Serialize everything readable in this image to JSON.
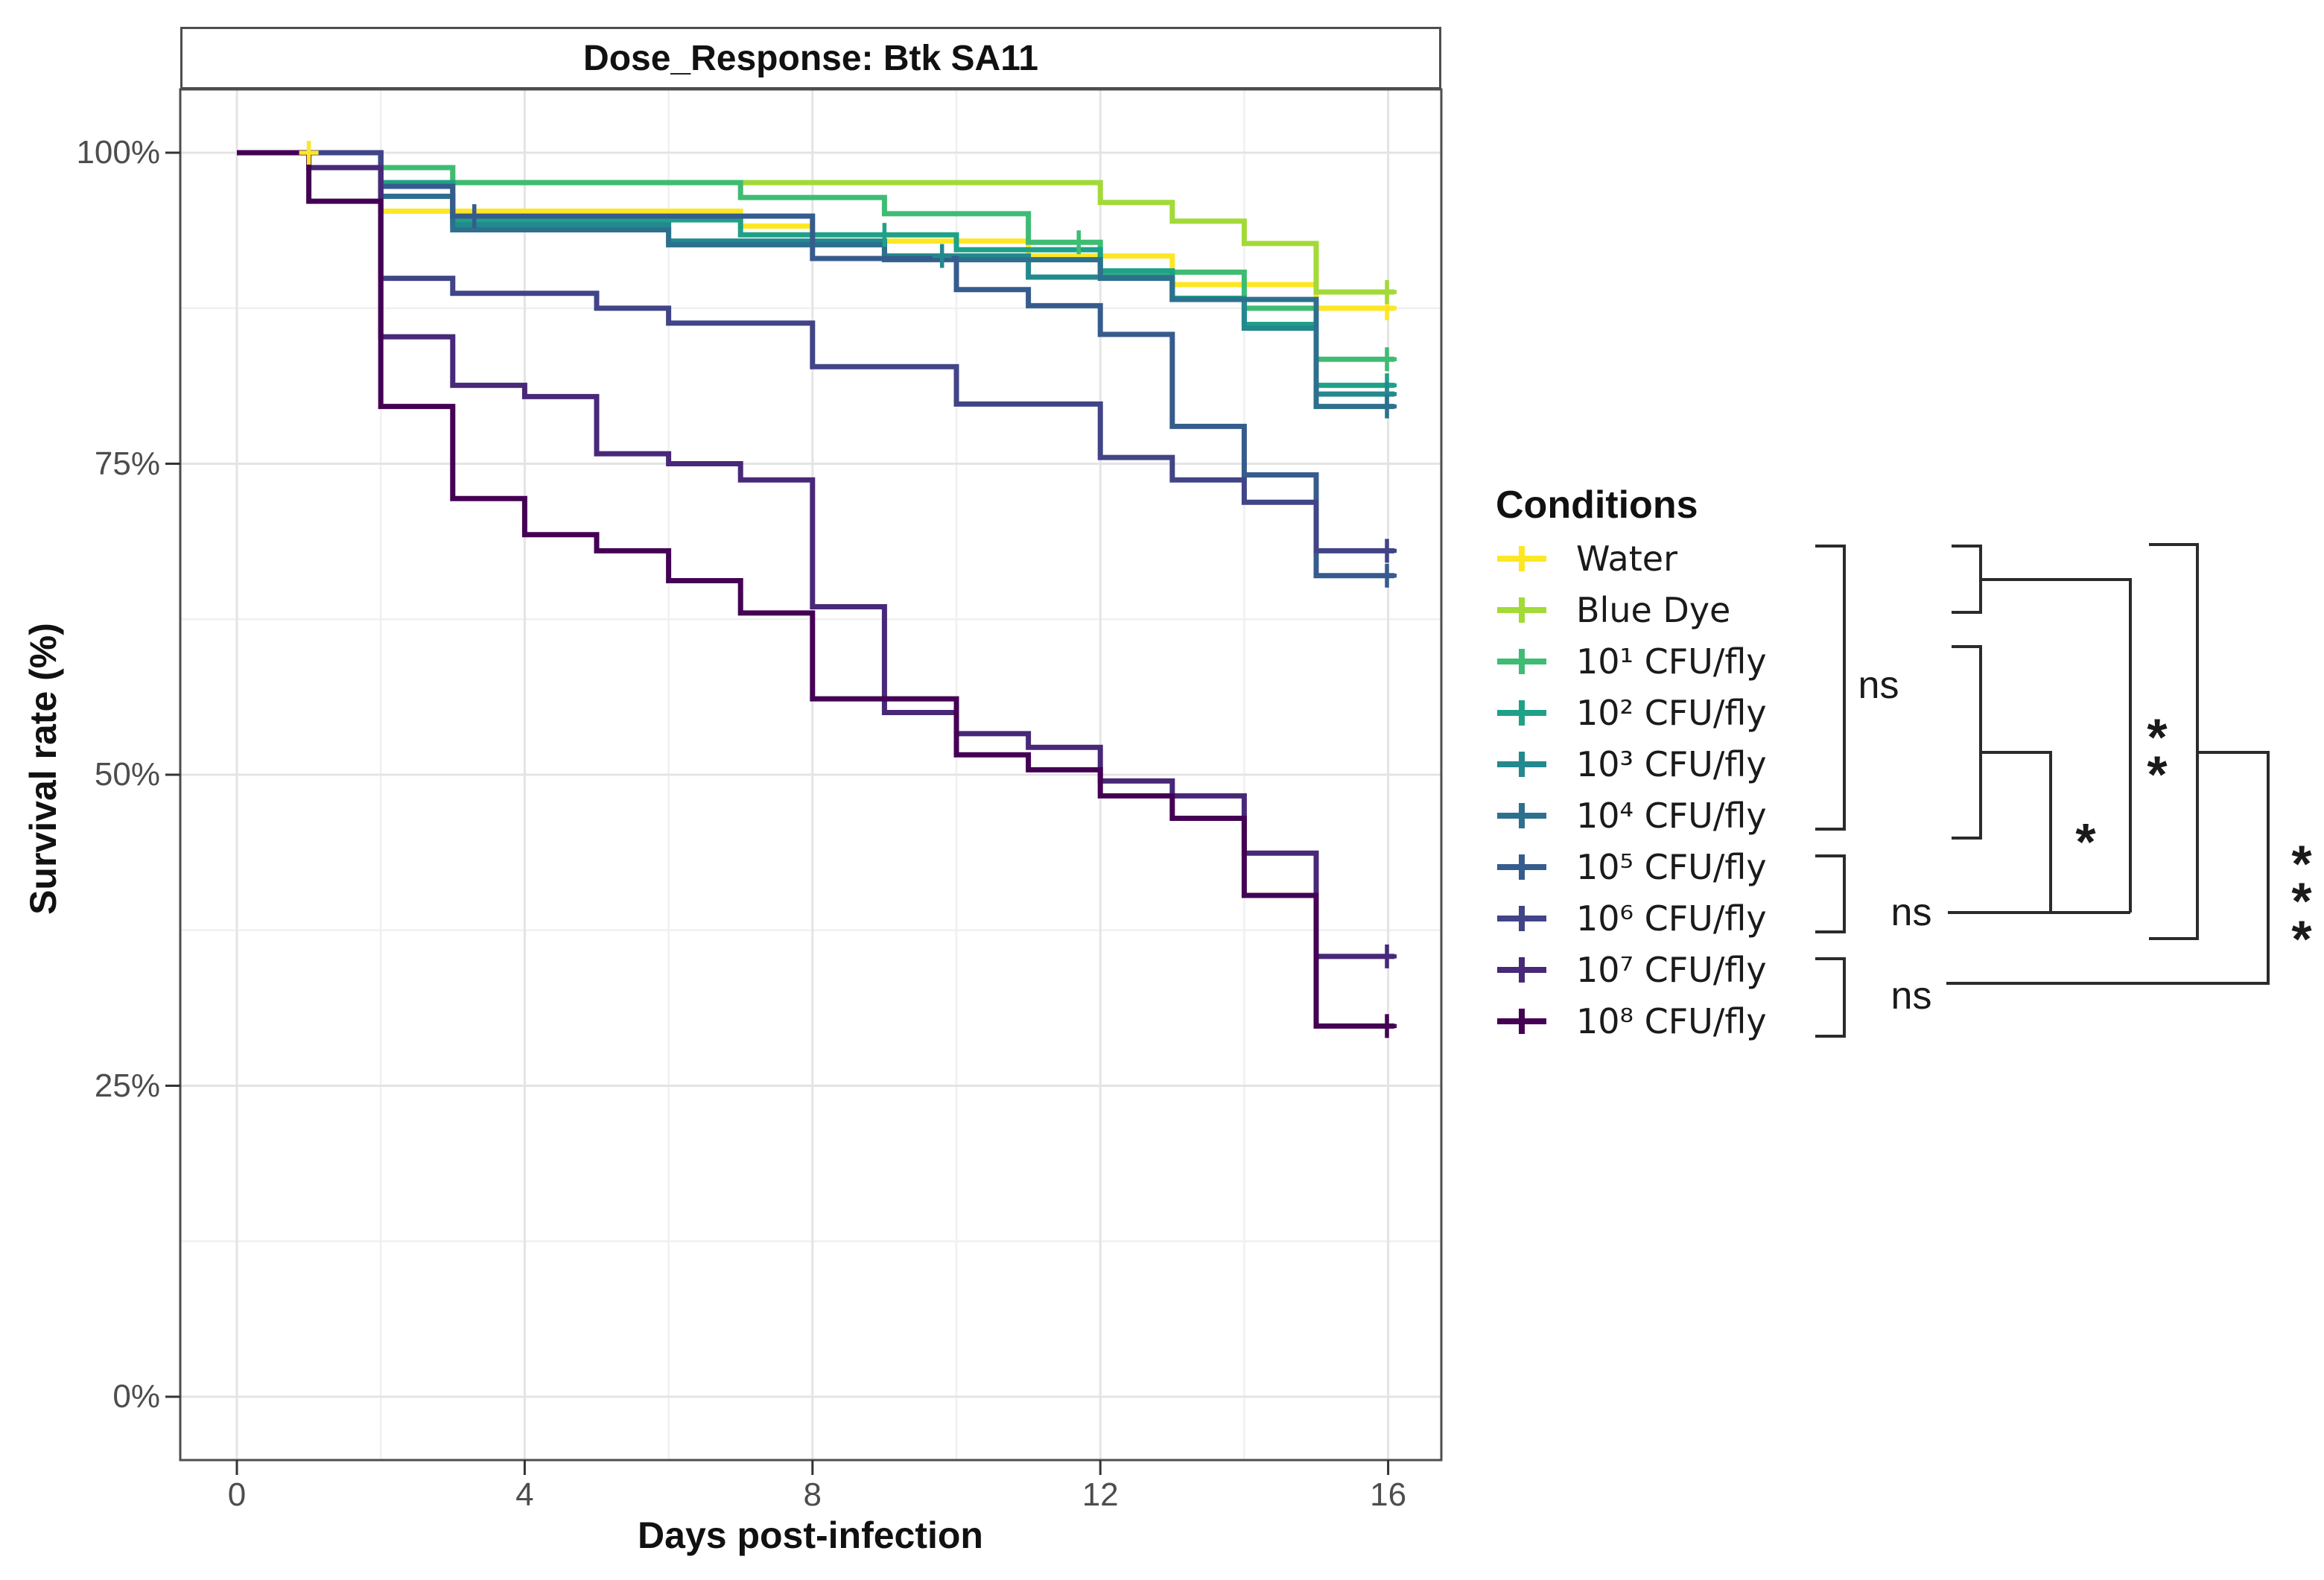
{
  "chart": {
    "title": "Dose_Response: Btk SA11",
    "x_label": "Days post-infection",
    "y_label": "Survival rate (%)"
  },
  "legend": {
    "title": "Conditions"
  },
  "chart_data": {
    "type": "line",
    "subtype": "kaplan-meier-step-survival",
    "title": "Dose_Response: Btk SA11",
    "xlabel": "Days post-infection",
    "ylabel": "Survival rate (%)",
    "xlim": [
      0,
      16.8
    ],
    "ylim": [
      0,
      100
    ],
    "x_ticks": [
      0,
      4,
      8,
      12,
      16
    ],
    "x_tick_labels": [
      "0",
      "4",
      "8",
      "12",
      "16"
    ],
    "x_minor_ticks": [
      2,
      6,
      10,
      14
    ],
    "y_ticks": [
      100,
      75,
      50,
      25,
      0
    ],
    "y_tick_labels": [
      "100%",
      "75%",
      "50%",
      "25%",
      "0%"
    ],
    "y_minor_ticks": [
      87.5,
      62.5,
      37.5,
      12.5
    ],
    "grid": true,
    "legend_position": "right",
    "series": [
      {
        "name": "Water",
        "color": "#FDE725",
        "steps": [
          [
            0,
            100
          ],
          [
            2,
            95.3
          ],
          [
            7,
            94.1
          ],
          [
            8,
            92.9
          ],
          [
            11,
            91.7
          ],
          [
            13,
            89.4
          ],
          [
            15,
            87.5
          ]
        ],
        "censors": [
          [
            1,
            100
          ],
          [
            16,
            87.5
          ]
        ]
      },
      {
        "name": "Blue Dye",
        "color": "#A2DA37",
        "steps": [
          [
            0,
            100
          ],
          [
            2,
            98.8
          ],
          [
            3,
            97.6
          ],
          [
            12,
            96.0
          ],
          [
            13,
            94.5
          ],
          [
            14,
            92.7
          ],
          [
            15,
            88.8
          ]
        ],
        "censors": [
          [
            16,
            88.8
          ]
        ]
      },
      {
        "name": "10¹ CFU/fly",
        "color": "#3FBC73",
        "steps": [
          [
            0,
            100
          ],
          [
            2,
            98.8
          ],
          [
            3,
            97.6
          ],
          [
            7,
            96.4
          ],
          [
            9,
            95.1
          ],
          [
            11,
            92.8
          ],
          [
            12,
            90.4
          ],
          [
            14,
            87.5
          ],
          [
            15,
            83.4
          ]
        ],
        "censors": [
          [
            11.7,
            92.8
          ],
          [
            16,
            83.4
          ]
        ]
      },
      {
        "name": "10² CFU/fly",
        "color": "#1FA188",
        "steps": [
          [
            0,
            100
          ],
          [
            2,
            97.6
          ],
          [
            3,
            94.6
          ],
          [
            7,
            93.4
          ],
          [
            10,
            92.2
          ],
          [
            12,
            90.5
          ],
          [
            13,
            88.3
          ],
          [
            14,
            86.2
          ],
          [
            15,
            81.3
          ]
        ],
        "censors": [
          [
            9,
            93.4
          ],
          [
            16,
            81.3
          ]
        ]
      },
      {
        "name": "10³ CFU/fly",
        "color": "#23898E",
        "steps": [
          [
            0,
            100
          ],
          [
            2,
            96.5
          ],
          [
            3,
            94.2
          ],
          [
            6,
            92.9
          ],
          [
            9,
            91.7
          ],
          [
            11,
            90.0
          ],
          [
            13,
            88.2
          ],
          [
            14,
            85.9
          ],
          [
            15,
            80.6
          ]
        ],
        "censors": [
          [
            9.8,
            91.7
          ],
          [
            16,
            80.6
          ]
        ]
      },
      {
        "name": "10⁴ CFU/fly",
        "color": "#2D708E",
        "steps": [
          [
            0,
            100
          ],
          [
            2,
            96.5
          ],
          [
            3,
            93.8
          ],
          [
            6,
            92.6
          ],
          [
            9,
            91.4
          ],
          [
            12,
            89.9
          ],
          [
            13,
            88.2
          ],
          [
            15,
            79.6
          ]
        ],
        "censors": [
          [
            16,
            79.6
          ]
        ]
      },
      {
        "name": "10⁵ CFU/fly",
        "color": "#365C8D",
        "steps": [
          [
            0,
            100
          ],
          [
            2,
            97.3
          ],
          [
            3,
            94.9
          ],
          [
            8,
            91.5
          ],
          [
            10,
            89.0
          ],
          [
            11,
            87.7
          ],
          [
            12,
            85.4
          ],
          [
            13,
            78.0
          ],
          [
            14,
            74.1
          ],
          [
            15,
            66.0
          ]
        ],
        "censors": [
          [
            3.3,
            94.9
          ],
          [
            16,
            66.0
          ]
        ]
      },
      {
        "name": "10⁶ CFU/fly",
        "color": "#414487",
        "steps": [
          [
            0,
            100
          ],
          [
            2,
            89.9
          ],
          [
            3,
            88.7
          ],
          [
            5,
            87.5
          ],
          [
            6,
            86.3
          ],
          [
            8,
            82.8
          ],
          [
            10,
            79.8
          ],
          [
            12,
            75.5
          ],
          [
            13,
            73.7
          ],
          [
            14,
            71.9
          ],
          [
            15,
            68.0
          ]
        ],
        "censors": [
          [
            16,
            68.0
          ]
        ]
      },
      {
        "name": "10⁷ CFU/fly",
        "color": "#482878",
        "steps": [
          [
            0,
            100
          ],
          [
            1,
            98.8
          ],
          [
            2,
            85.2
          ],
          [
            3,
            81.3
          ],
          [
            4,
            80.4
          ],
          [
            5,
            75.8
          ],
          [
            6,
            75.0
          ],
          [
            7,
            73.7
          ],
          [
            8,
            63.5
          ],
          [
            9,
            55.0
          ],
          [
            10,
            53.3
          ],
          [
            11,
            52.2
          ],
          [
            12,
            49.5
          ],
          [
            13,
            48.3
          ],
          [
            14,
            43.7
          ],
          [
            15,
            35.4
          ]
        ],
        "censors": [
          [
            16,
            35.4
          ]
        ]
      },
      {
        "name": "10⁸ CFU/fly",
        "color": "#440154",
        "steps": [
          [
            0,
            100
          ],
          [
            1,
            96.1
          ],
          [
            2,
            79.6
          ],
          [
            3,
            72.2
          ],
          [
            4,
            69.3
          ],
          [
            5,
            68.0
          ],
          [
            6,
            65.6
          ],
          [
            7,
            63.0
          ],
          [
            8,
            56.1
          ],
          [
            10,
            51.6
          ],
          [
            11,
            50.4
          ],
          [
            12,
            48.3
          ],
          [
            13,
            46.5
          ],
          [
            14,
            40.3
          ],
          [
            15,
            29.8
          ]
        ],
        "censors": [
          [
            16,
            29.8
          ]
        ]
      }
    ],
    "significance": {
      "groups": [
        {
          "label": "ns",
          "members": [
            "Water",
            "Blue Dye",
            "10¹ CFU/fly",
            "10² CFU/fly",
            "10³ CFU/fly",
            "10⁴ CFU/fly"
          ]
        },
        {
          "label": "ns",
          "members": [
            "10⁵ CFU/fly",
            "10⁶ CFU/fly"
          ]
        },
        {
          "label": "ns",
          "members": [
            "10⁷ CFU/fly",
            "10⁸ CFU/fly"
          ]
        }
      ],
      "comparisons": [
        {
          "label": "*",
          "between": [
            "10¹–10⁴ group",
            "10⁵–10⁶ group"
          ]
        },
        {
          "label": "**",
          "between": [
            "Water–Blue Dye group",
            "10⁵–10⁶ group"
          ]
        },
        {
          "label": "***",
          "between": [
            "Water–10⁶ group",
            "10⁷–10⁸ group"
          ]
        }
      ]
    }
  }
}
